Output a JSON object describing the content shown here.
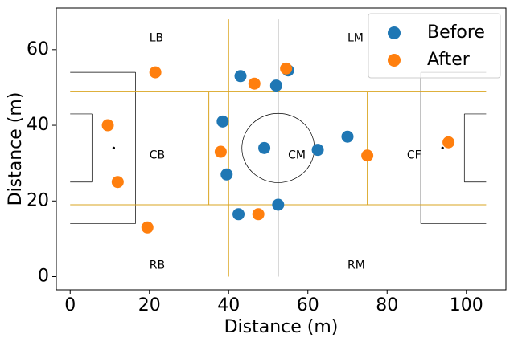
{
  "chart_data": {
    "type": "scatter",
    "title": "",
    "xlabel": "Distance (m)",
    "ylabel": "Distance (m)",
    "xlim": [
      -3.5,
      110
    ],
    "ylim": [
      -3.5,
      71
    ],
    "xticks": [
      0,
      20,
      40,
      60,
      80,
      100
    ],
    "yticks": [
      0,
      20,
      40,
      60
    ],
    "grid": false,
    "legend_position": "top-right",
    "series": [
      {
        "name": "Before",
        "color": "#1f77b4",
        "points": [
          {
            "x": 43.0,
            "y": 53.0
          },
          {
            "x": 52.0,
            "y": 50.5
          },
          {
            "x": 55.0,
            "y": 54.5
          },
          {
            "x": 38.5,
            "y": 41.0
          },
          {
            "x": 49.0,
            "y": 34.0
          },
          {
            "x": 62.5,
            "y": 33.5
          },
          {
            "x": 70.0,
            "y": 37.0
          },
          {
            "x": 39.5,
            "y": 27.0
          },
          {
            "x": 42.5,
            "y": 16.5
          },
          {
            "x": 52.5,
            "y": 19.0
          }
        ]
      },
      {
        "name": "After",
        "color": "#ff7f0e",
        "points": [
          {
            "x": 21.5,
            "y": 54.0
          },
          {
            "x": 46.5,
            "y": 51.0
          },
          {
            "x": 54.5,
            "y": 55.0
          },
          {
            "x": 9.5,
            "y": 40.0
          },
          {
            "x": 38.0,
            "y": 33.0
          },
          {
            "x": 75.0,
            "y": 32.0
          },
          {
            "x": 95.5,
            "y": 35.5
          },
          {
            "x": 12.0,
            "y": 25.0
          },
          {
            "x": 19.5,
            "y": 13.0
          },
          {
            "x": 47.5,
            "y": 16.5
          }
        ]
      }
    ],
    "annotations": [
      {
        "text": "LB",
        "x": 20,
        "y": 63
      },
      {
        "text": "LM",
        "x": 70,
        "y": 63
      },
      {
        "text": "CB",
        "x": 20,
        "y": 32
      },
      {
        "text": "CM",
        "x": 55,
        "y": 32
      },
      {
        "text": "CF",
        "x": 85,
        "y": 32
      },
      {
        "text": "RB",
        "x": 20,
        "y": 3
      },
      {
        "text": "RM",
        "x": 70,
        "y": 3
      }
    ],
    "pitch": {
      "line_color": "#000000",
      "zone_line_color": "#daa520",
      "length": 105,
      "width": 68,
      "segments": [
        [
          [
            0,
            54
          ],
          [
            16.5,
            54
          ]
        ],
        [
          [
            16.5,
            54
          ],
          [
            16.5,
            14
          ]
        ],
        [
          [
            16.5,
            14
          ],
          [
            0,
            14
          ]
        ],
        [
          [
            0,
            43
          ],
          [
            5.5,
            43
          ]
        ],
        [
          [
            5.5,
            43
          ],
          [
            5.5,
            25
          ]
        ],
        [
          [
            5.5,
            25
          ],
          [
            0,
            25
          ]
        ],
        [
          [
            105,
            54
          ],
          [
            88.5,
            54
          ]
        ],
        [
          [
            88.5,
            54
          ],
          [
            88.5,
            14
          ]
        ],
        [
          [
            88.5,
            14
          ],
          [
            105,
            14
          ]
        ],
        [
          [
            105,
            43
          ],
          [
            99.5,
            43
          ]
        ],
        [
          [
            99.5,
            43
          ],
          [
            99.5,
            25
          ]
        ],
        [
          [
            99.5,
            25
          ],
          [
            105,
            25
          ]
        ],
        [
          [
            52.5,
            68
          ],
          [
            52.5,
            0
          ]
        ]
      ],
      "zone_segments": [
        [
          [
            0,
            49
          ],
          [
            105,
            49
          ]
        ],
        [
          [
            0,
            19
          ],
          [
            105,
            19
          ]
        ],
        [
          [
            35,
            49
          ],
          [
            35,
            19
          ]
        ],
        [
          [
            75,
            49
          ],
          [
            75,
            19
          ]
        ],
        [
          [
            40,
            68
          ],
          [
            40,
            0
          ]
        ]
      ],
      "center_circle": {
        "x": 52.5,
        "y": 34,
        "r": 9.15
      },
      "penalty_spots": [
        {
          "x": 11,
          "y": 34
        },
        {
          "x": 94,
          "y": 34
        }
      ]
    }
  }
}
